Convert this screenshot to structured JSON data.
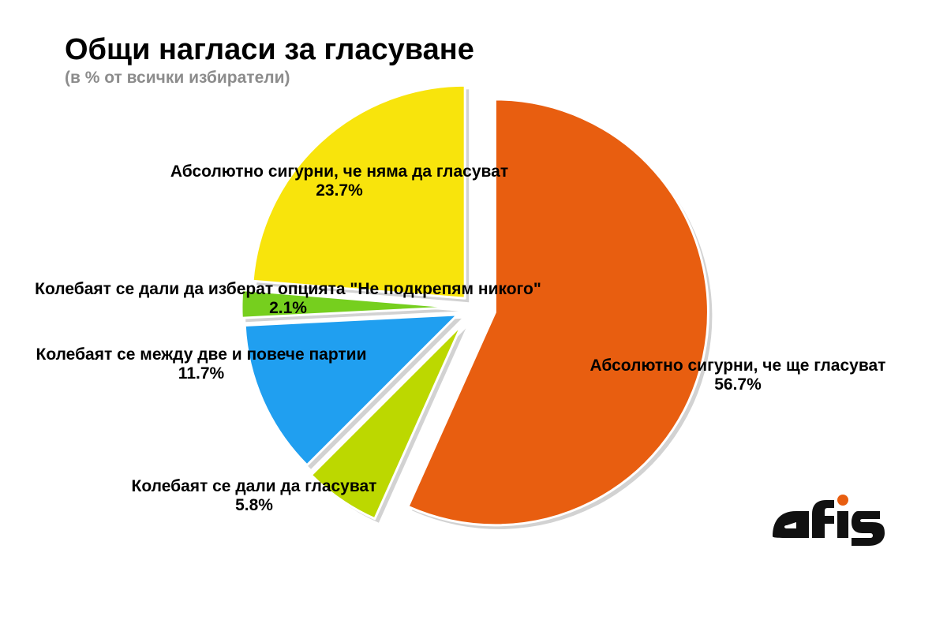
{
  "chart_data": {
    "type": "pie",
    "title": "Общи нагласи за гласуване",
    "subtitle": "(в % от всички избиратели)",
    "unit": "%",
    "slices": [
      {
        "label": "Абсолютно сигурни, че ще гласуват",
        "value": 56.7,
        "value_label": "56.7%",
        "color": "#e85e10"
      },
      {
        "label": "Колебаят се дали да гласуват",
        "value": 5.8,
        "value_label": "5.8%",
        "color": "#bcd800"
      },
      {
        "label": "Колебаят се между две и повече партии",
        "value": 11.7,
        "value_label": "11.7%",
        "color": "#209ff0"
      },
      {
        "label": "Колебаят се дали да изберат опцията \"Не подкрепям никого\"",
        "value": 2.1,
        "value_label": "2.1%",
        "color": "#76cf1e"
      },
      {
        "label": "Абсолютно сигурни, че няма да гласуват",
        "value": 23.7,
        "value_label": "23.7%",
        "color": "#f8e40c"
      }
    ],
    "legend": "none"
  },
  "logo": {
    "text": "afis",
    "color": "#111111"
  }
}
